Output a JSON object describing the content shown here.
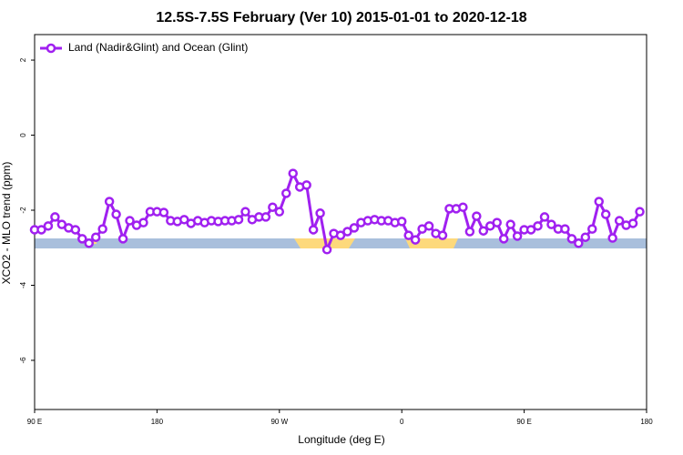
{
  "chart_data": {
    "type": "line",
    "title": "12.5S-7.5S February (Ver 10)   2015-01-01 to 2020-12-18",
    "x_label": "Longitude (deg E)",
    "y_label": "XCO2 - MLO trend (ppm)",
    "xlim": [
      90,
      540
    ],
    "ylim": [
      -7.31,
      2.68
    ],
    "xticks": [
      {
        "value": 90,
        "label": "90 E"
      },
      180,
      {
        "value": 270,
        "label": "90 W"
      },
      {
        "value": 360,
        "label": "0"
      },
      {
        "value": 450,
        "label": "90 E"
      },
      {
        "value": 540,
        "label": "180"
      }
    ],
    "yticks": [
      2,
      0,
      -2,
      -4,
      -6
    ],
    "legend": "top-left",
    "x": [
      90,
      95,
      100,
      105,
      110,
      115,
      120,
      125,
      130,
      135,
      140,
      145,
      150,
      155,
      160,
      165,
      170,
      175,
      180,
      185,
      190,
      195,
      200,
      205,
      210,
      215,
      220,
      225,
      230,
      235,
      240,
      245,
      250,
      255,
      260,
      265,
      270,
      275,
      280,
      285,
      290,
      295,
      300,
      305,
      310,
      315,
      320,
      325,
      330,
      335,
      340,
      345,
      350,
      355,
      360,
      365,
      370,
      375,
      380,
      385,
      390,
      395,
      400,
      405,
      410,
      415,
      420,
      425,
      430,
      435,
      440,
      445,
      450,
      455,
      460,
      465,
      470,
      475,
      480,
      485,
      490,
      495,
      500,
      505,
      510,
      515,
      520,
      525,
      530,
      535
    ],
    "series": [
      {
        "name": "Land (Nadir&Glint) and Ocean (Glint)",
        "color": "#a020f0",
        "values": [
          -2.52,
          -2.52,
          -2.42,
          -2.18,
          -2.38,
          -2.47,
          -2.52,
          -2.76,
          -2.88,
          -2.72,
          -2.5,
          -1.77,
          -2.11,
          -2.76,
          -2.28,
          -2.4,
          -2.33,
          -2.04,
          -2.04,
          -2.06,
          -2.28,
          -2.3,
          -2.25,
          -2.35,
          -2.28,
          -2.33,
          -2.28,
          -2.3,
          -2.28,
          -2.28,
          -2.25,
          -2.04,
          -2.25,
          -2.18,
          -2.18,
          -1.92,
          -2.04,
          -1.55,
          -1.02,
          -1.38,
          -1.33,
          -2.52,
          -2.08,
          -3.05,
          -2.62,
          -2.67,
          -2.57,
          -2.47,
          -2.33,
          -2.28,
          -2.25,
          -2.28,
          -2.28,
          -2.33,
          -2.3,
          -2.67,
          -2.79,
          -2.5,
          -2.42,
          -2.62,
          -2.67,
          -1.96,
          -1.96,
          -1.92,
          -2.57,
          -2.16,
          -2.55,
          -2.42,
          -2.33,
          -2.76,
          -2.38,
          -2.69,
          -2.52,
          -2.52,
          -2.42,
          -2.18,
          -2.38,
          -2.5,
          -2.5,
          -2.76,
          -2.88,
          -2.72,
          -2.5,
          -1.77,
          -2.11,
          -2.74,
          -2.28,
          -2.4,
          -2.35,
          -2.04
        ]
      }
    ]
  }
}
